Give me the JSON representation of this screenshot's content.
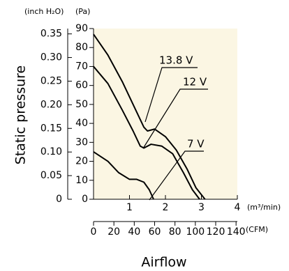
{
  "chart_data": {
    "type": "line",
    "y_label": "Static pressure",
    "x_label": "Airflow",
    "y_unit": "(Pa)",
    "y2_unit": "(inch H₂O)",
    "x_unit": "(m³/min)",
    "x2_unit": "(CFM)",
    "xlim": [
      0,
      4
    ],
    "xticks": [
      1,
      2,
      3,
      4
    ],
    "x2lim": [
      0,
      141.26
    ],
    "x2ticks": [
      0,
      20,
      40,
      60,
      80,
      100,
      120,
      140
    ],
    "ylim": [
      0,
      90
    ],
    "yticks": [
      0,
      10,
      20,
      30,
      40,
      50,
      60,
      70,
      80,
      90
    ],
    "y2lim": [
      0,
      0.3613
    ],
    "y2ticks": [
      0,
      0.05,
      {
        "value": 0.1,
        "label": "0.10"
      },
      0.15,
      {
        "value": 0.2,
        "label": "0.20"
      },
      0.25,
      {
        "value": 0.3,
        "label": "0.30"
      },
      0.35
    ],
    "series": [
      {
        "name": "13.8 V",
        "color": "#000000",
        "x": [
          0,
          0.4,
          0.8,
          1.2,
          1.4,
          1.5,
          1.7,
          2.0,
          2.3,
          2.6,
          2.85,
          3.1
        ],
        "values": [
          87,
          76,
          62,
          46,
          38,
          36,
          37,
          33,
          26,
          16,
          6,
          0
        ]
      },
      {
        "name": "12 V",
        "color": "#000000",
        "x": [
          0,
          0.4,
          0.8,
          1.1,
          1.3,
          1.4,
          1.6,
          1.9,
          2.2,
          2.5,
          2.75,
          2.95
        ],
        "values": [
          70,
          61,
          47,
          36,
          28,
          27,
          29,
          28,
          24,
          14,
          5,
          0
        ]
      },
      {
        "name": "7 V",
        "color": "#000000",
        "x": [
          0,
          0.4,
          0.7,
          1.0,
          1.2,
          1.4,
          1.55,
          1.67
        ],
        "values": [
          25,
          20,
          14,
          10.5,
          10.5,
          9,
          5,
          0
        ]
      }
    ]
  }
}
